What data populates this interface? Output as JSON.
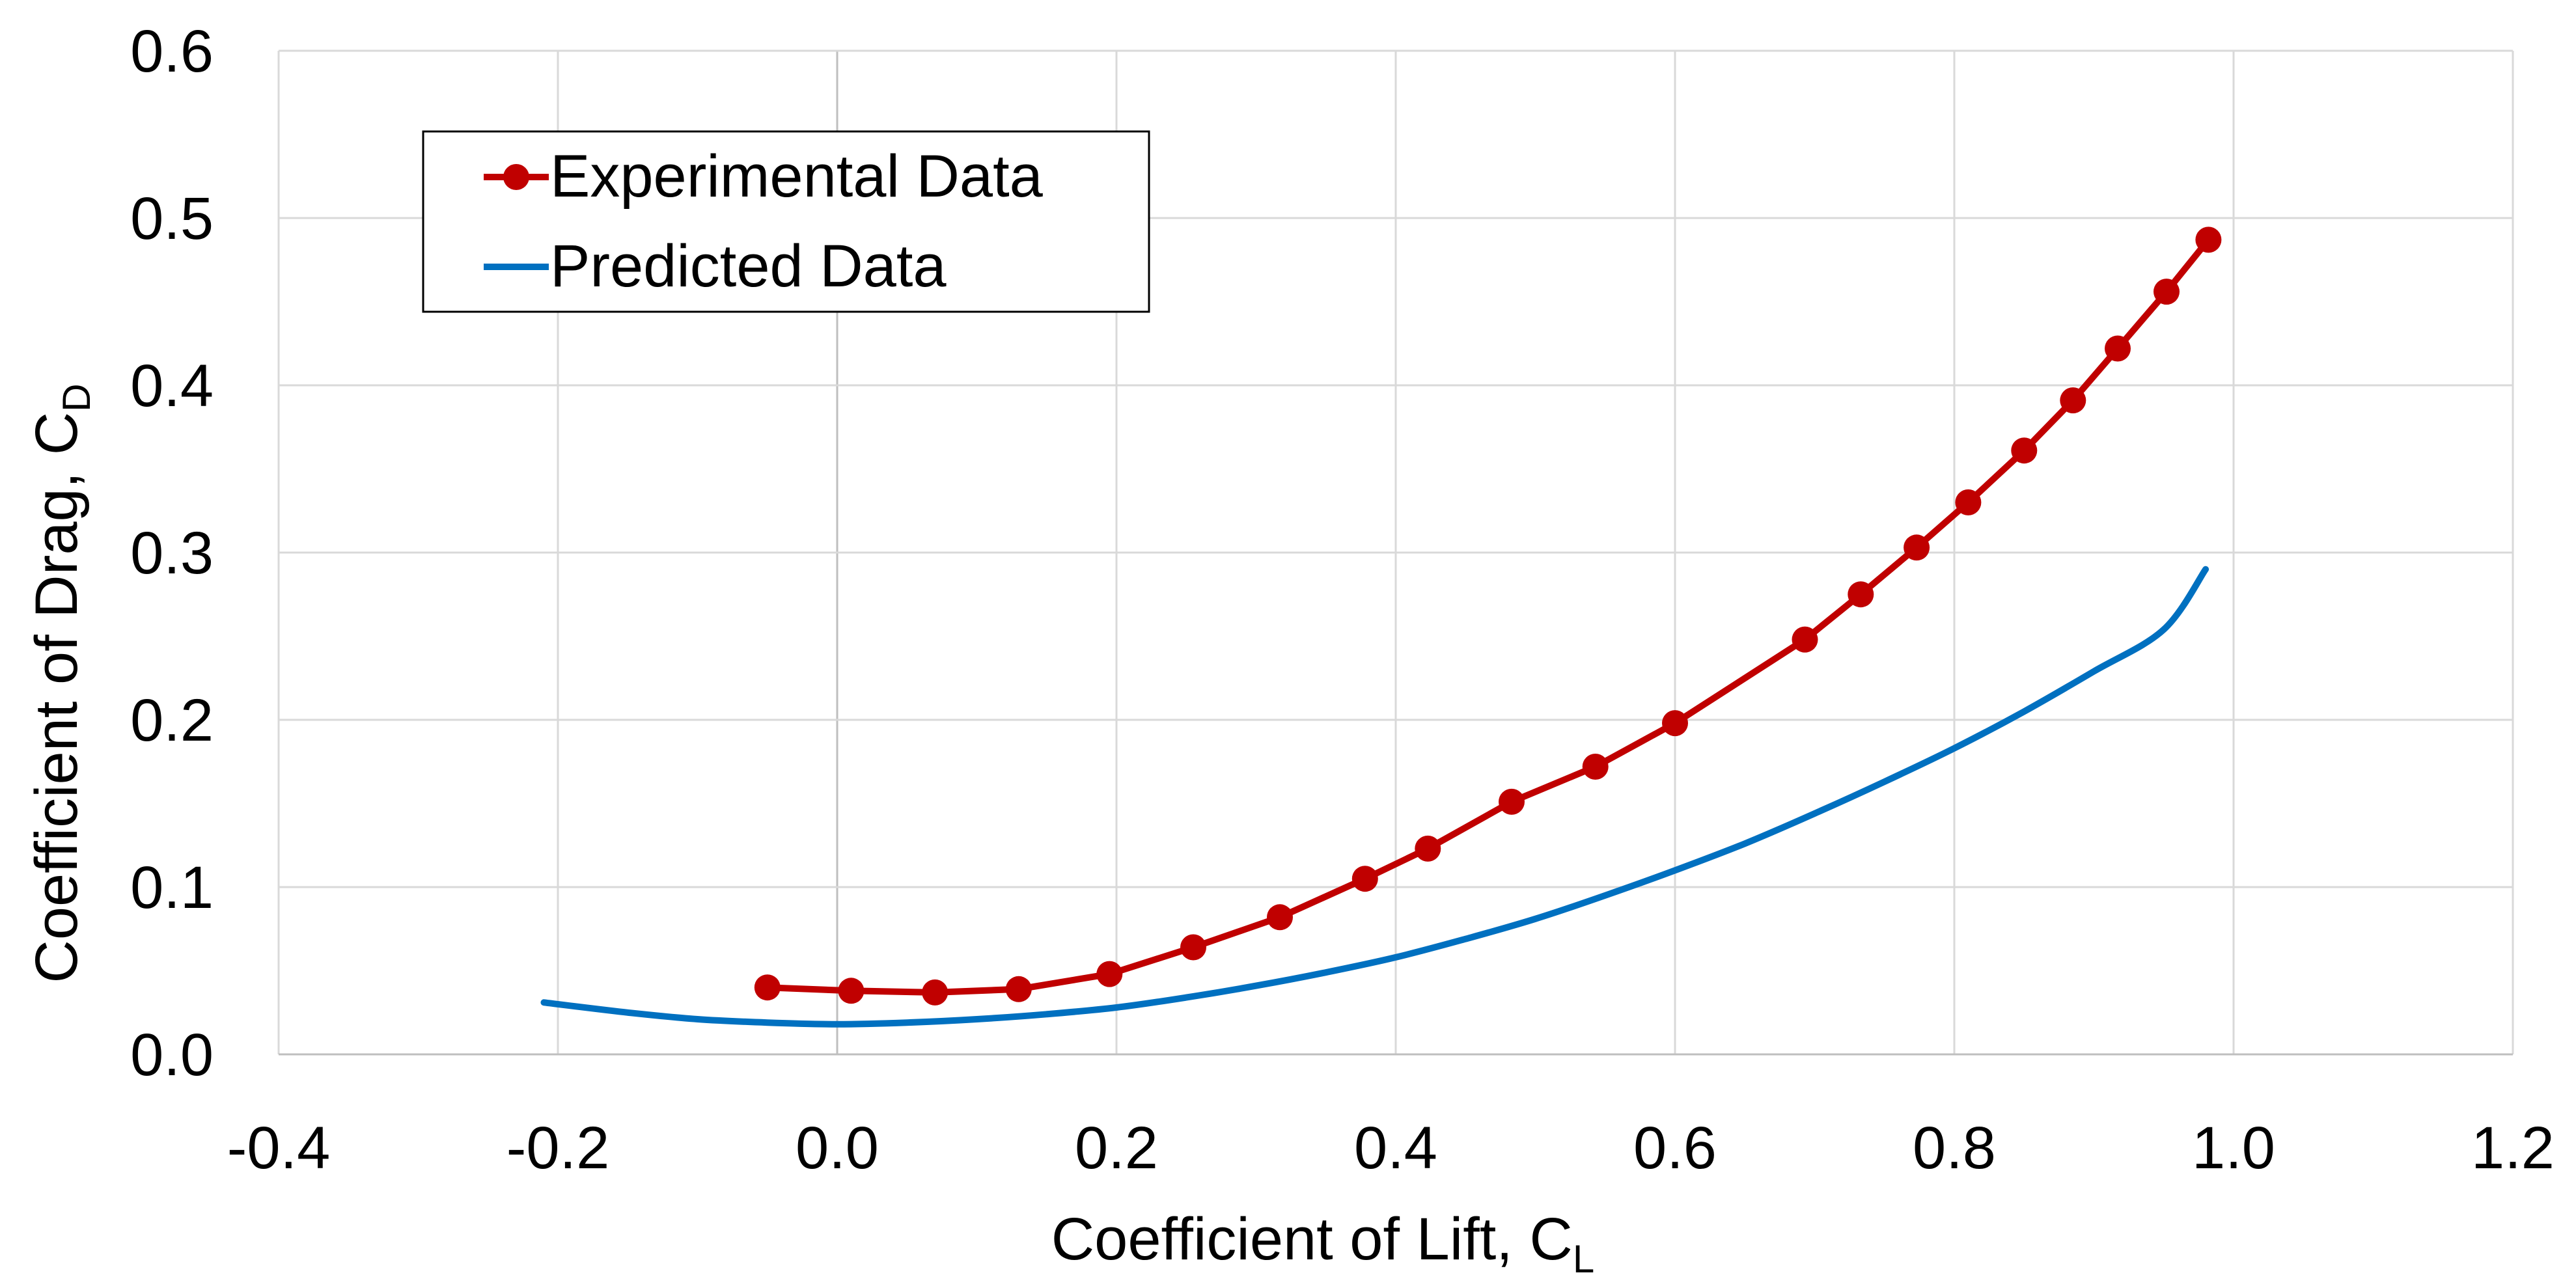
{
  "chart_data": {
    "type": "line",
    "xlabel": "Coefficient of Lift, C",
    "xlabel_sub": "L",
    "ylabel": "Coefficient of Drag, C",
    "ylabel_sub": "D",
    "xlim": [
      -0.4,
      1.2
    ],
    "ylim": [
      0.0,
      0.6
    ],
    "x_ticks": [
      -0.4,
      -0.2,
      0.0,
      0.2,
      0.4,
      0.6,
      0.8,
      1.0,
      1.2
    ],
    "x_tick_labels": [
      "-0.4",
      "-0.2",
      "0.0",
      "0.2",
      "0.4",
      "0.6",
      "0.8",
      "1.0",
      "1.2"
    ],
    "y_ticks": [
      0.0,
      0.1,
      0.2,
      0.3,
      0.4,
      0.5,
      0.6
    ],
    "y_tick_labels": [
      "0.0",
      "0.1",
      "0.2",
      "0.3",
      "0.4",
      "0.5",
      "0.6"
    ],
    "grid": true,
    "legend_position": "top-left",
    "series": [
      {
        "name": "Experimental Data",
        "color": "#C00000",
        "markers": true,
        "x": [
          -0.05,
          0.01,
          0.07,
          0.13,
          0.195,
          0.255,
          0.317,
          0.378,
          0.423,
          0.483,
          0.543,
          0.6,
          0.693,
          0.733,
          0.773,
          0.81,
          0.85,
          0.885,
          0.917,
          0.952,
          0.982
        ],
        "y": [
          0.04,
          0.038,
          0.037,
          0.039,
          0.048,
          0.064,
          0.082,
          0.105,
          0.123,
          0.151,
          0.172,
          0.198,
          0.248,
          0.275,
          0.303,
          0.33,
          0.361,
          0.391,
          0.422,
          0.456,
          0.487
        ]
      },
      {
        "name": "Predicted Data",
        "color": "#0070C0",
        "markers": false,
        "x": [
          -0.21,
          -0.15,
          -0.1,
          -0.05,
          0.0,
          0.05,
          0.1,
          0.15,
          0.2,
          0.25,
          0.3,
          0.35,
          0.4,
          0.45,
          0.5,
          0.55,
          0.6,
          0.65,
          0.7,
          0.75,
          0.8,
          0.85,
          0.9,
          0.95,
          0.98
        ],
        "y": [
          0.031,
          0.025,
          0.021,
          0.019,
          0.018,
          0.019,
          0.021,
          0.024,
          0.028,
          0.034,
          0.041,
          0.049,
          0.058,
          0.069,
          0.081,
          0.095,
          0.11,
          0.126,
          0.144,
          0.163,
          0.183,
          0.205,
          0.229,
          0.254,
          0.29
        ]
      }
    ]
  }
}
